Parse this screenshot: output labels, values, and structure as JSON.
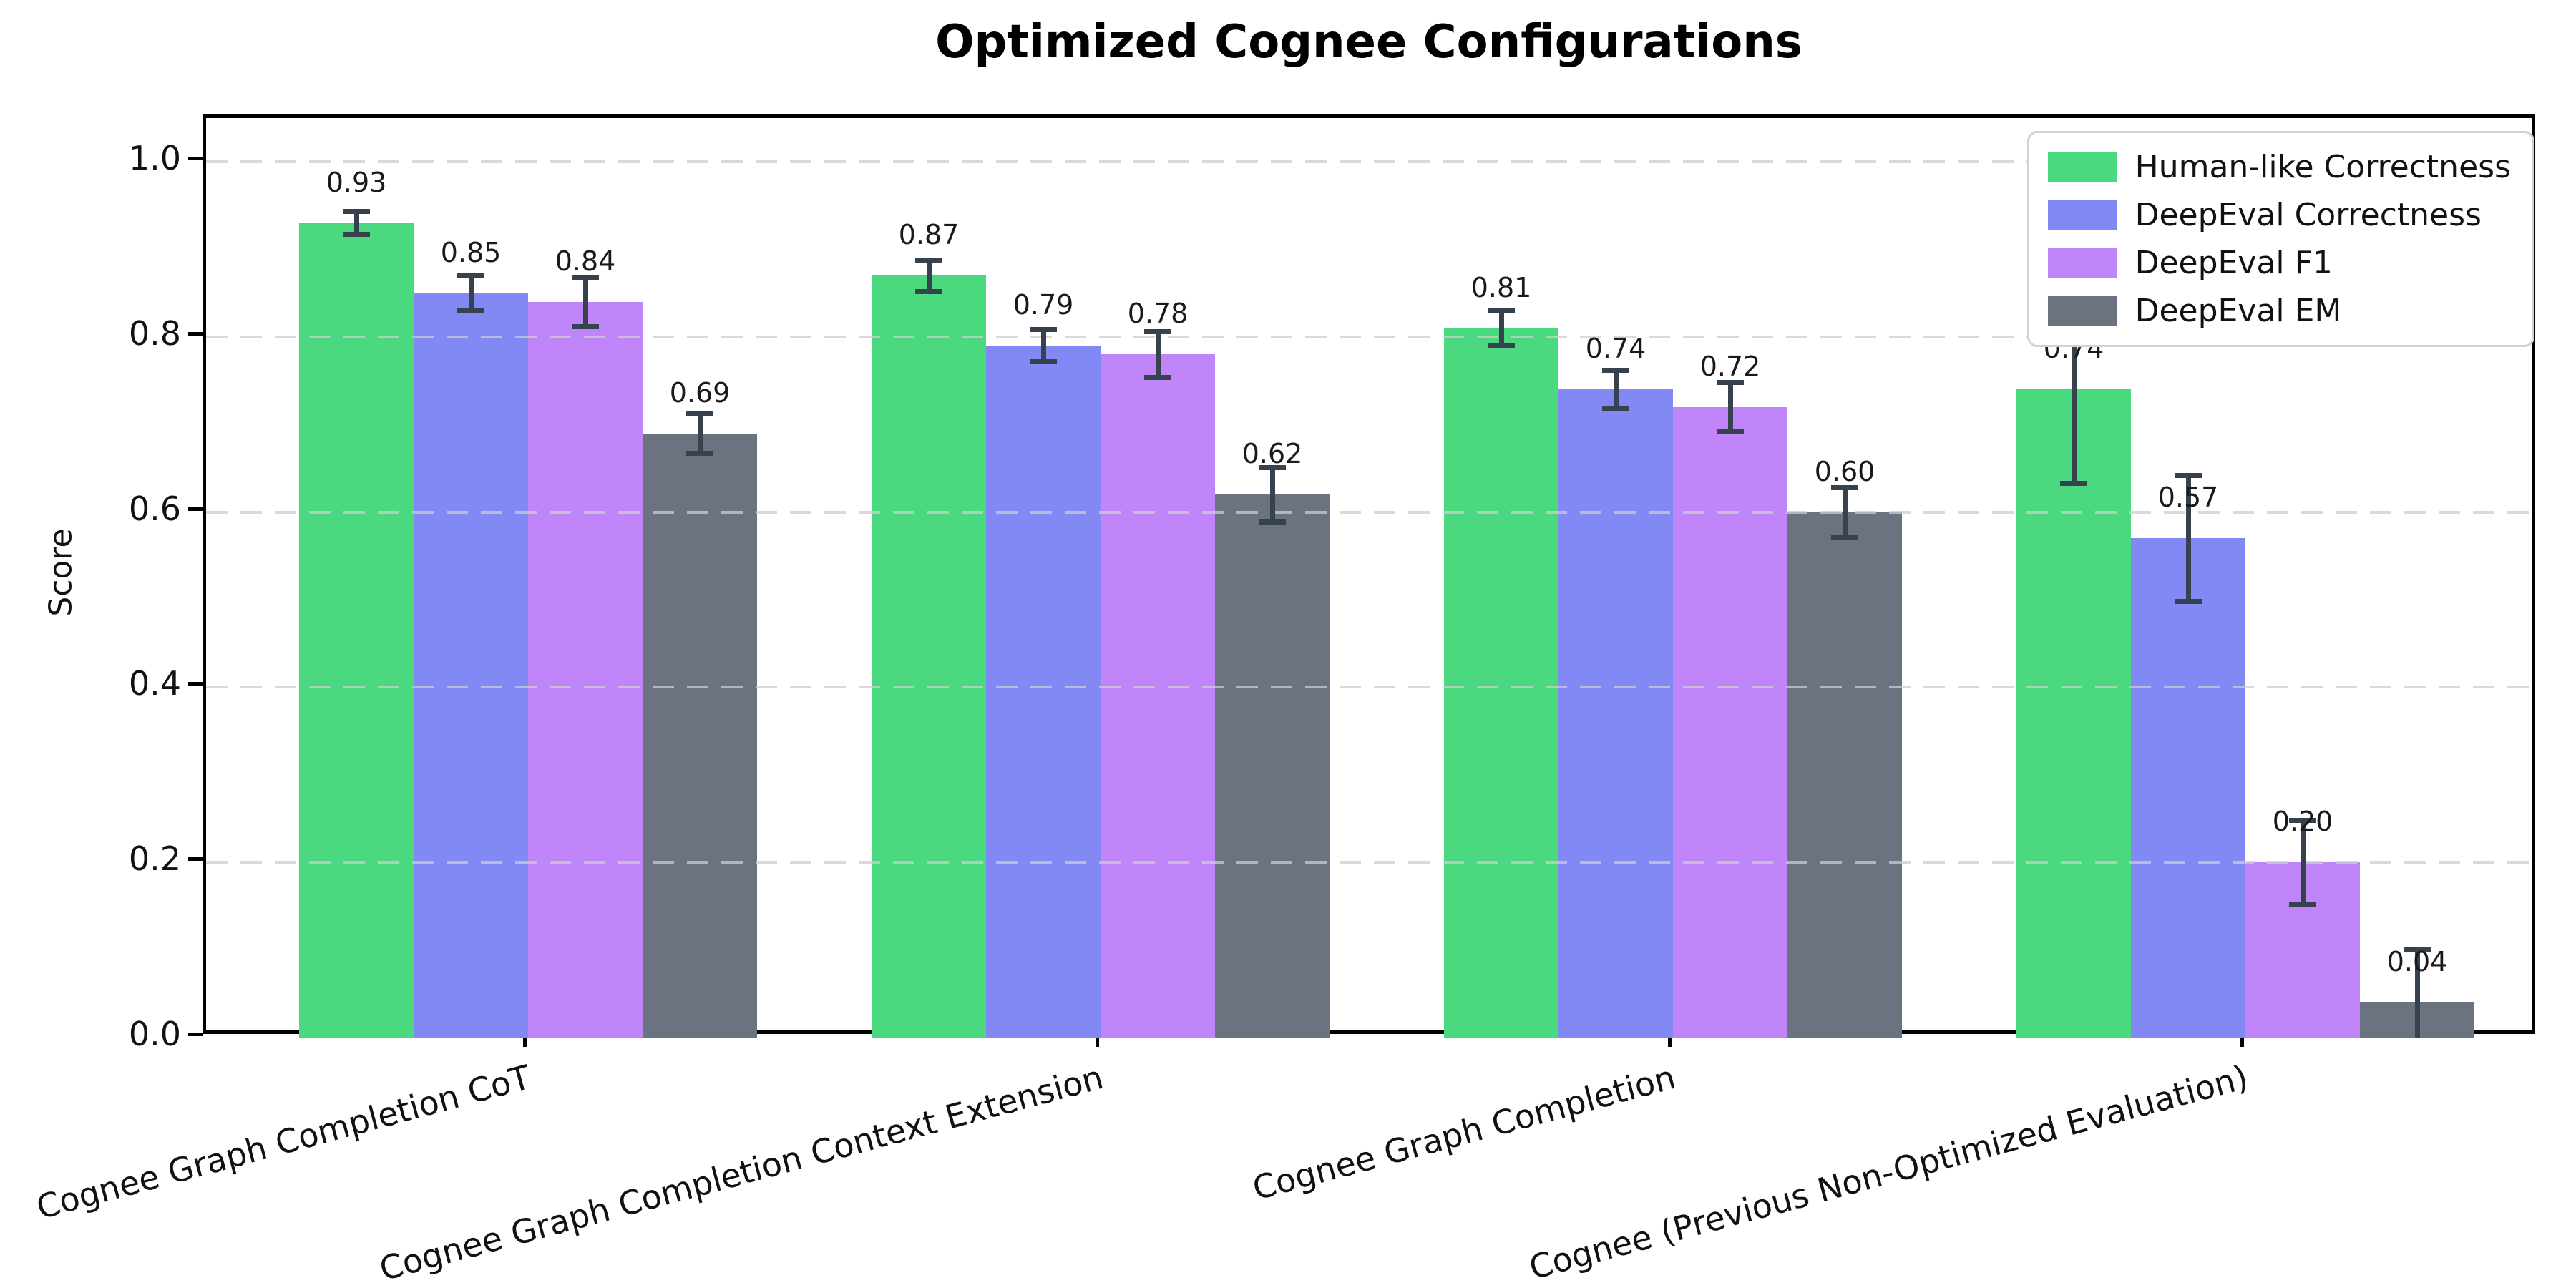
{
  "title": "Optimized Cognee Configurations",
  "ylabel": "Score",
  "chart_data": {
    "type": "bar",
    "title": "Optimized Cognee Configurations",
    "xlabel": "",
    "ylabel": "Score",
    "ylim": [
      0,
      1.05
    ],
    "yticks": [
      "0.0",
      "0.2",
      "0.4",
      "0.6",
      "0.8",
      "1.0"
    ],
    "grid": "horizontal dashed",
    "legend_position": "upper right",
    "categories": [
      "Cognee Graph Completion CoT",
      "Cognee Graph Completion Context Extension",
      "Cognee Graph Completion",
      "Cognee (Previous Non-Optimized Evaluation)"
    ],
    "series": [
      {
        "name": "Human-like Correctness",
        "color": "#4bd97f",
        "values": [
          0.93,
          0.87,
          0.81,
          0.74
        ],
        "value_labels": [
          "0.93",
          "0.87",
          "0.81",
          "0.74"
        ],
        "errors": [
          0.016,
          0.021,
          0.023,
          0.11
        ]
      },
      {
        "name": "DeepEval Correctness",
        "color": "#8289f5",
        "values": [
          0.85,
          0.79,
          0.74,
          0.57
        ],
        "value_labels": [
          "0.85",
          "0.79",
          "0.74",
          "0.57"
        ],
        "errors": [
          0.023,
          0.021,
          0.025,
          0.075
        ]
      },
      {
        "name": "DeepEval F1",
        "color": "#bf85f9",
        "values": [
          0.84,
          0.78,
          0.72,
          0.2
        ],
        "value_labels": [
          "0.84",
          "0.78",
          "0.72",
          "0.20"
        ],
        "errors": [
          0.031,
          0.029,
          0.031,
          0.051
        ]
      },
      {
        "name": "DeepEval EM",
        "color": "#6b7280",
        "values": [
          0.69,
          0.62,
          0.6,
          0.04
        ],
        "value_labels": [
          "0.69",
          "0.62",
          "0.60",
          "0.04"
        ],
        "errors": [
          0.026,
          0.034,
          0.031,
          0.064
        ]
      }
    ],
    "colors": {
      "error_bar": "#37424f",
      "grid": "#cdcdcd",
      "axis": "#000000",
      "value_label": "#1a1a1a",
      "background": "#ffffff"
    }
  }
}
